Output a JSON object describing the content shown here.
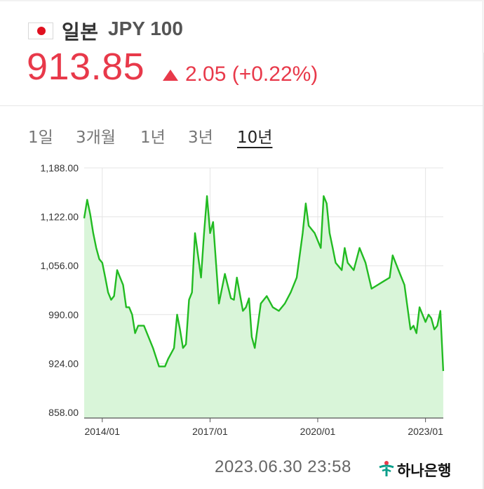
{
  "header": {
    "currency_name": "일본",
    "currency_code": "JPY 100",
    "price": "913.85",
    "change": "2.05 (+0.22%)",
    "up_color": "#e8394a",
    "flag_icon": "japan-flag-icon",
    "change_icon": "up-triangle-icon"
  },
  "tabs": [
    {
      "label": "1일",
      "active": false
    },
    {
      "label": "3개월",
      "active": false
    },
    {
      "label": "1년",
      "active": false
    },
    {
      "label": "3년",
      "active": false
    },
    {
      "label": "10년",
      "active": true
    }
  ],
  "footer": {
    "timestamp": "2023.06.30 23:58",
    "bank_name": "하나은행",
    "bank_icon": "hana-bank-logo-icon"
  },
  "chart_data": {
    "type": "area",
    "title": "",
    "xlabel": "",
    "ylabel": "",
    "ylim": [
      858,
      1188
    ],
    "xlim": [
      "2013-07-01",
      "2023-07-01"
    ],
    "yticks": [
      "1,188.00",
      "1,122.00",
      "1,056.00",
      "990.00",
      "924.00",
      "858.00"
    ],
    "xticks": [
      "2014/01",
      "2017/01",
      "2020/01",
      "2023/01"
    ],
    "line_color": "#22bb22",
    "fill_color": "#d9f5d9",
    "grid": true,
    "series": [
      {
        "x": [
          "2013-07-01",
          "2013-08-01",
          "2013-09-01",
          "2013-10-01",
          "2013-11-01",
          "2013-12-01",
          "2014-01-01",
          "2014-02-01",
          "2014-03-01",
          "2014-04-01",
          "2014-05-01",
          "2014-06-01",
          "2014-07-01",
          "2014-08-01",
          "2014-09-01",
          "2014-10-01",
          "2014-11-01",
          "2014-12-01",
          "2015-01-01",
          "2015-03-01",
          "2015-06-01",
          "2015-08-01",
          "2015-10-01",
          "2015-11-01",
          "2016-01-01",
          "2016-02-01",
          "2016-03-01",
          "2016-04-01",
          "2016-05-01",
          "2016-06-01",
          "2016-07-01",
          "2016-08-01",
          "2016-09-01",
          "2016-10-01",
          "2016-11-01",
          "2016-12-01",
          "2017-01-01",
          "2017-02-01",
          "2017-04-01",
          "2017-06-01",
          "2017-08-01",
          "2017-09-01",
          "2017-10-01",
          "2017-12-01",
          "2018-01-01",
          "2018-02-01",
          "2018-03-01",
          "2018-04-01",
          "2018-06-01",
          "2018-08-01",
          "2018-10-01",
          "2018-12-01",
          "2019-02-01",
          "2019-04-01",
          "2019-06-01",
          "2019-08-01",
          "2019-09-01",
          "2019-10-01",
          "2019-12-01",
          "2020-02-01",
          "2020-03-01",
          "2020-04-01",
          "2020-05-01",
          "2020-06-01",
          "2020-07-01",
          "2020-09-01",
          "2020-10-01",
          "2020-11-01",
          "2021-01-01",
          "2021-03-01",
          "2021-05-01",
          "2021-07-01",
          "2021-09-01",
          "2021-11-01",
          "2022-01-01",
          "2022-02-01",
          "2022-04-01",
          "2022-06-01",
          "2022-08-01",
          "2022-09-01",
          "2022-10-01",
          "2022-11-01",
          "2023-01-01",
          "2023-02-01",
          "2023-03-01",
          "2023-04-01",
          "2023-05-01",
          "2023-06-01",
          "2023-06-30"
        ],
        "values": [
          1120,
          1145,
          1125,
          1100,
          1080,
          1065,
          1060,
          1040,
          1020,
          1010,
          1015,
          1050,
          1040,
          1030,
          1000,
          1000,
          990,
          965,
          975,
          975,
          945,
          920,
          920,
          930,
          945,
          990,
          970,
          945,
          950,
          1010,
          1020,
          1100,
          1070,
          1040,
          1100,
          1150,
          1100,
          1115,
          1005,
          1045,
          1012,
          1010,
          1040,
          995,
          1000,
          1012,
          960,
          945,
          1005,
          1015,
          1000,
          995,
          1005,
          1020,
          1040,
          1100,
          1140,
          1110,
          1100,
          1080,
          1150,
          1140,
          1100,
          1080,
          1060,
          1050,
          1080,
          1060,
          1050,
          1080,
          1060,
          1025,
          1030,
          1035,
          1040,
          1070,
          1050,
          1030,
          970,
          975,
          965,
          1000,
          980,
          990,
          985,
          970,
          975,
          995,
          913.85
        ]
      }
    ]
  }
}
